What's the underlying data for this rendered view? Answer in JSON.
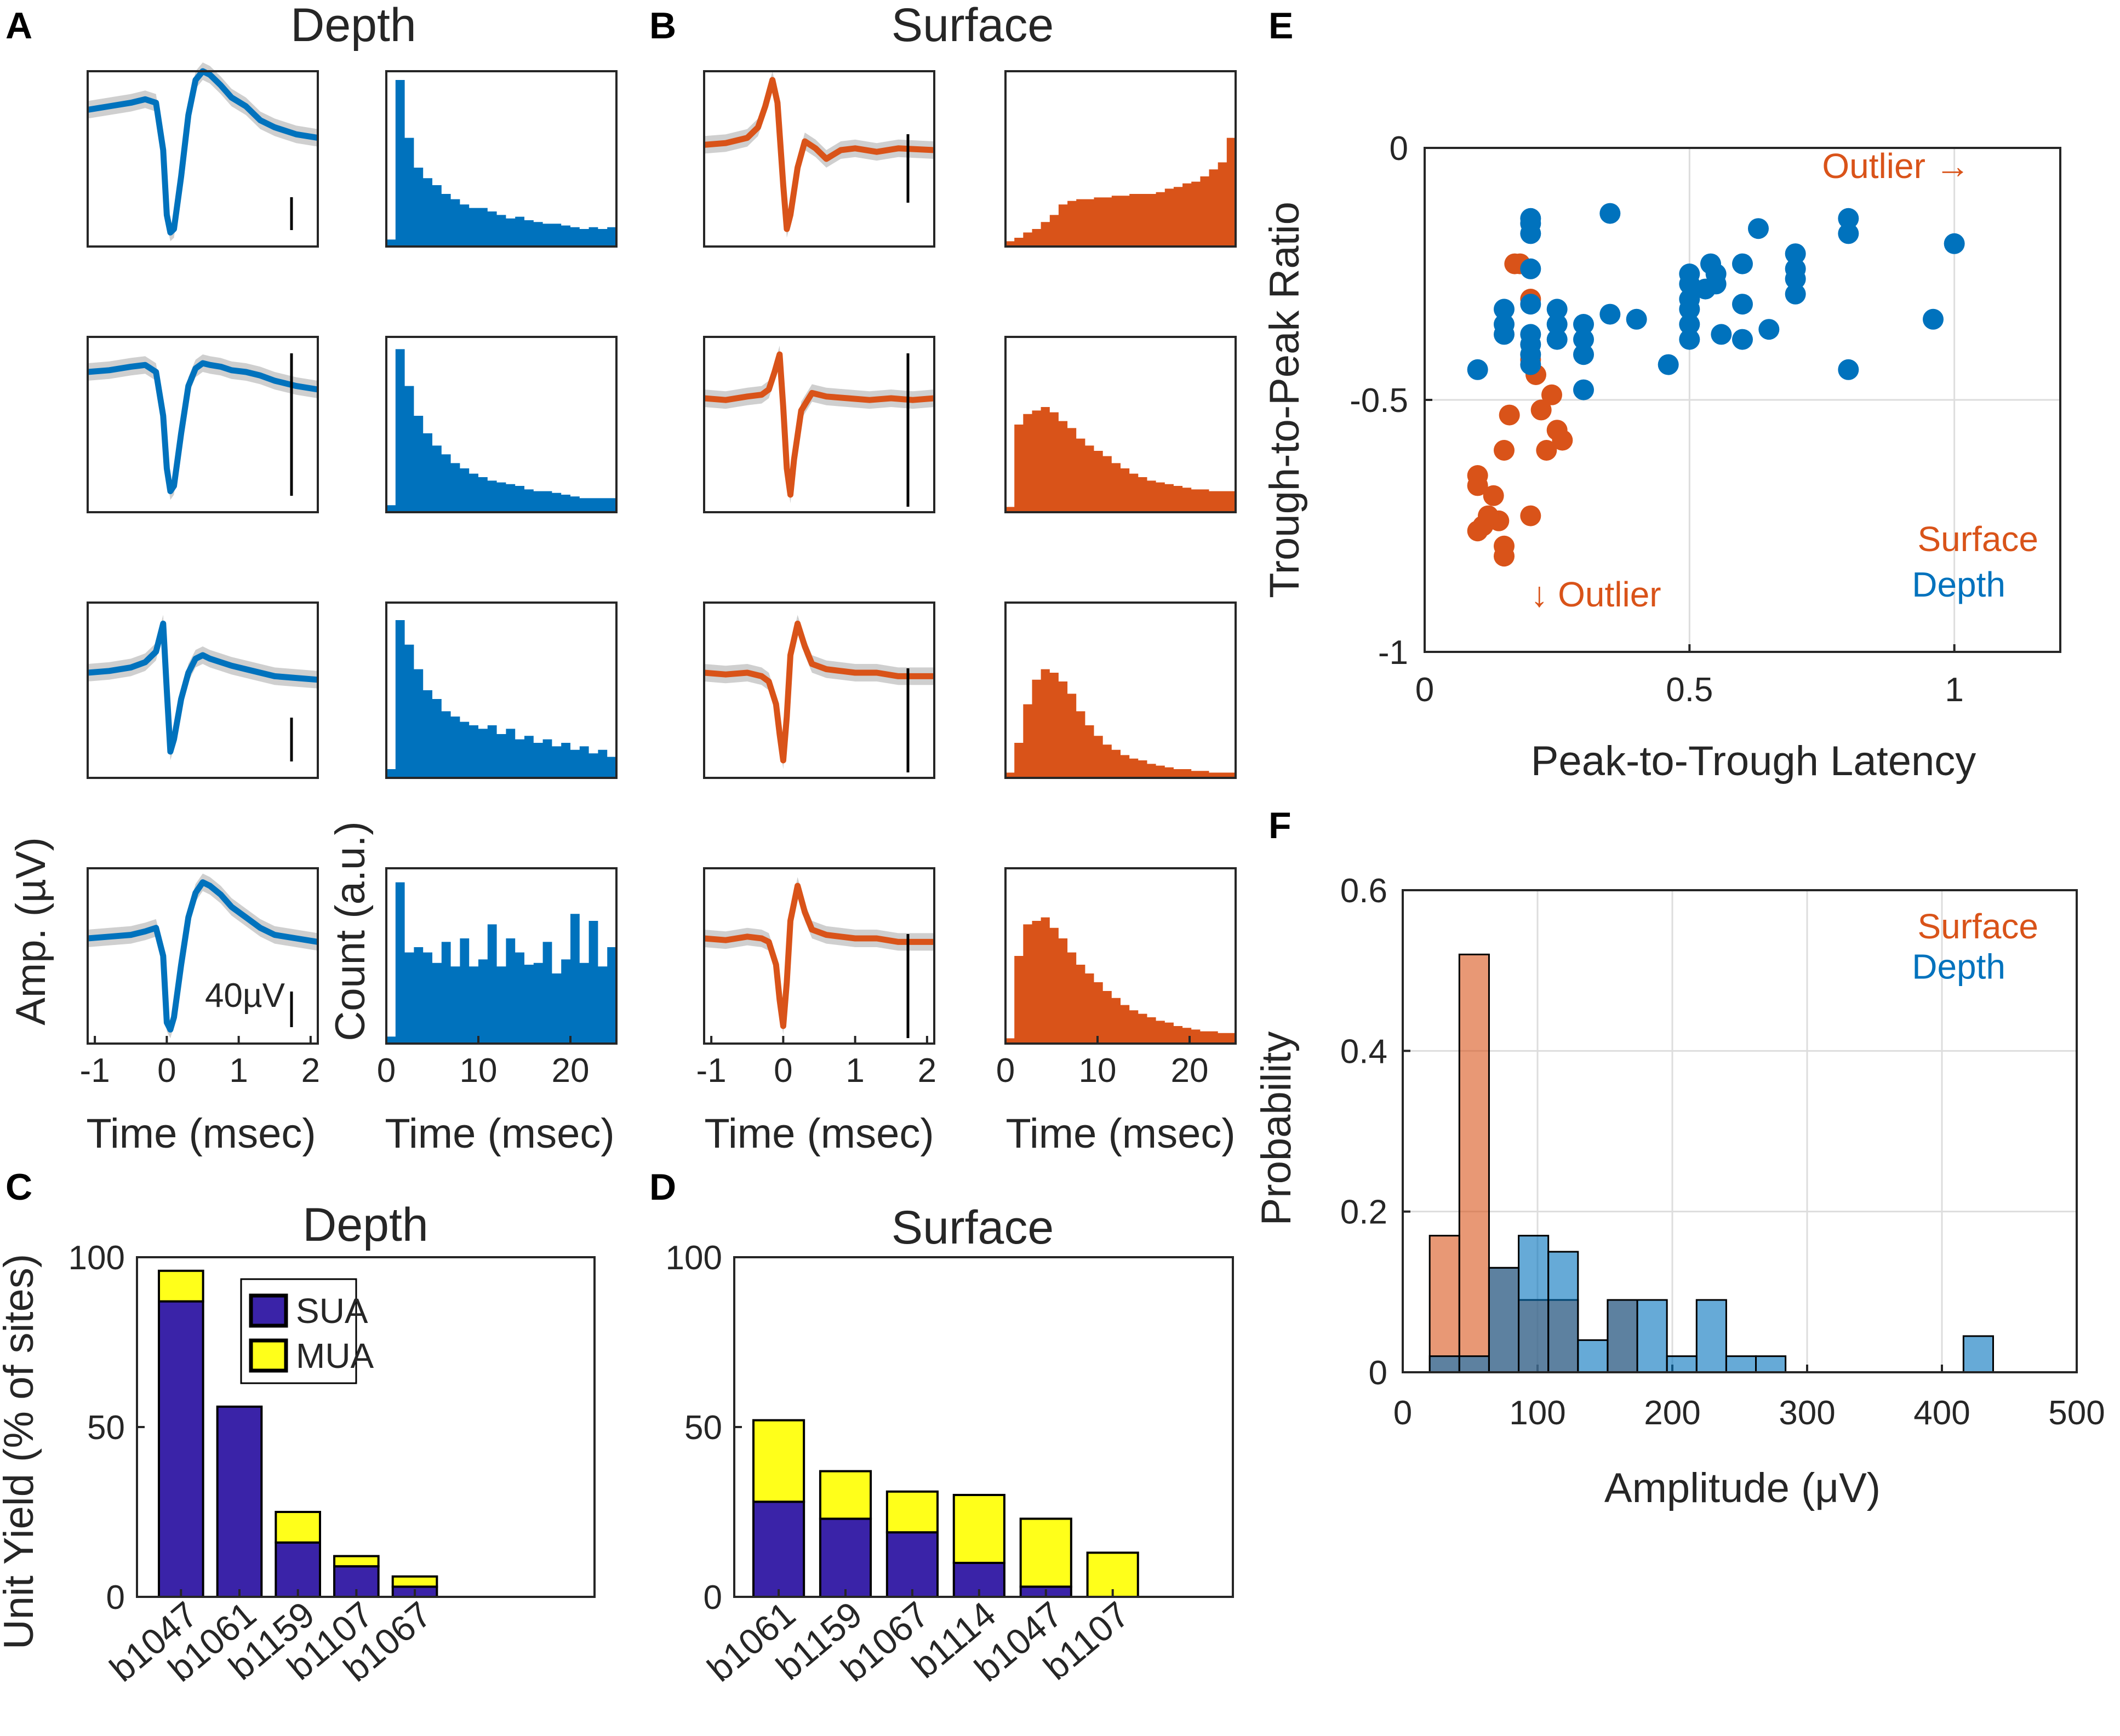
{
  "colors": {
    "depth": "#0072BD",
    "surface": "#D95319",
    "sua": "#3A23A8",
    "mua": "#FFFF1A",
    "shade": "#cfcfcf",
    "grid": "#dddddd",
    "axis": "#262626"
  },
  "chart_data": [
    {
      "id": "A",
      "type": "line",
      "panel_label": "A",
      "title": "Depth",
      "waveform_xlabel": "Time (msec)",
      "waveform_ylabel": "Amp. (µV)",
      "waveform_xticks": [
        "-1",
        "0",
        "1",
        "2"
      ],
      "waveform_xlim": [
        -1.1,
        2.1
      ],
      "hist_xlabel": "Time (msec)",
      "hist_ylabel": "Count (a.u.)",
      "hist_xticks": [
        "0",
        "10",
        "20"
      ],
      "hist_xlim": [
        0,
        25
      ],
      "scale_bar_label": "40µV",
      "rows": [
        {
          "waveform": {
            "t": [
              -1.1,
              -0.8,
              -0.5,
              -0.3,
              -0.15,
              -0.05,
              0,
              0.05,
              0.1,
              0.2,
              0.3,
              0.4,
              0.5,
              0.6,
              0.75,
              0.9,
              1.1,
              1.3,
              1.5,
              1.8,
              2.1
            ],
            "v": [
              0.78,
              0.8,
              0.82,
              0.84,
              0.82,
              0.55,
              0.18,
              0.08,
              0.1,
              0.4,
              0.75,
              0.95,
              1.0,
              0.98,
              0.92,
              0.85,
              0.8,
              0.72,
              0.68,
              0.64,
              0.62
            ]
          },
          "hist": [
            0.04,
            0.95,
            0.62,
            0.45,
            0.39,
            0.35,
            0.3,
            0.27,
            0.24,
            0.22,
            0.22,
            0.2,
            0.18,
            0.16,
            0.17,
            0.15,
            0.14,
            0.13,
            0.13,
            0.12,
            0.11,
            0.1,
            0.11,
            0.1,
            0.11
          ]
        },
        {
          "waveform": {
            "t": [
              -1.1,
              -0.8,
              -0.5,
              -0.3,
              -0.15,
              -0.05,
              0,
              0.05,
              0.1,
              0.2,
              0.3,
              0.4,
              0.5,
              0.6,
              0.75,
              0.9,
              1.1,
              1.3,
              1.5,
              1.8,
              2.1
            ],
            "v": [
              0.8,
              0.81,
              0.83,
              0.84,
              0.8,
              0.55,
              0.25,
              0.12,
              0.15,
              0.45,
              0.72,
              0.82,
              0.85,
              0.84,
              0.83,
              0.81,
              0.8,
              0.78,
              0.75,
              0.72,
              0.7
            ]
          },
          "hist": [
            0.04,
            0.93,
            0.72,
            0.55,
            0.45,
            0.38,
            0.33,
            0.28,
            0.25,
            0.22,
            0.2,
            0.18,
            0.17,
            0.16,
            0.15,
            0.13,
            0.12,
            0.12,
            0.11,
            0.1,
            0.09,
            0.08,
            0.08,
            0.08,
            0.08
          ]
        },
        {
          "waveform": {
            "t": [
              -1.1,
              -0.8,
              -0.5,
              -0.3,
              -0.15,
              -0.05,
              0,
              0.05,
              0.1,
              0.2,
              0.3,
              0.4,
              0.5,
              0.6,
              0.75,
              0.9,
              1.1,
              1.3,
              1.5,
              1.8,
              2.1
            ],
            "v": [
              0.6,
              0.61,
              0.63,
              0.66,
              0.72,
              0.88,
              0.5,
              0.15,
              0.22,
              0.45,
              0.6,
              0.68,
              0.7,
              0.68,
              0.66,
              0.64,
              0.62,
              0.6,
              0.58,
              0.57,
              0.56
            ]
          },
          "hist": [
            0.05,
            0.9,
            0.76,
            0.62,
            0.5,
            0.45,
            0.38,
            0.35,
            0.32,
            0.3,
            0.28,
            0.3,
            0.25,
            0.28,
            0.22,
            0.24,
            0.2,
            0.22,
            0.18,
            0.2,
            0.16,
            0.18,
            0.14,
            0.16,
            0.12
          ]
        },
        {
          "waveform": {
            "t": [
              -1.1,
              -0.8,
              -0.5,
              -0.3,
              -0.15,
              -0.05,
              0,
              0.05,
              0.1,
              0.2,
              0.3,
              0.4,
              0.5,
              0.6,
              0.75,
              0.9,
              1.1,
              1.3,
              1.5,
              1.8,
              2.1
            ],
            "v": [
              0.6,
              0.61,
              0.62,
              0.64,
              0.66,
              0.5,
              0.12,
              0.08,
              0.15,
              0.45,
              0.72,
              0.86,
              0.92,
              0.9,
              0.85,
              0.78,
              0.72,
              0.66,
              0.62,
              0.6,
              0.58
            ]
          },
          "hist": [
            0.04,
            0.92,
            0.52,
            0.55,
            0.52,
            0.46,
            0.58,
            0.44,
            0.6,
            0.44,
            0.48,
            0.68,
            0.44,
            0.6,
            0.52,
            0.45,
            0.46,
            0.58,
            0.4,
            0.48,
            0.74,
            0.46,
            0.7,
            0.44,
            0.55
          ]
        }
      ]
    },
    {
      "id": "B",
      "type": "line",
      "panel_label": "B",
      "title": "Surface",
      "waveform_xlabel": "Time (msec)",
      "waveform_xticks": [
        "-1",
        "0",
        "1",
        "2"
      ],
      "waveform_xlim": [
        -1.1,
        2.1
      ],
      "hist_xlabel": "Time (msec)",
      "hist_xticks": [
        "0",
        "10",
        "20"
      ],
      "hist_xlim": [
        0,
        25
      ],
      "rows": [
        {
          "waveform": {
            "t": [
              -1.1,
              -0.8,
              -0.5,
              -0.35,
              -0.25,
              -0.15,
              -0.08,
              0,
              0.05,
              0.1,
              0.2,
              0.3,
              0.45,
              0.6,
              0.8,
              1.0,
              1.3,
              1.6,
              2.1
            ],
            "v": [
              0.58,
              0.59,
              0.62,
              0.68,
              0.8,
              0.95,
              0.82,
              0.35,
              0.1,
              0.18,
              0.45,
              0.6,
              0.56,
              0.5,
              0.55,
              0.56,
              0.54,
              0.56,
              0.55
            ]
          },
          "hist": [
            0.03,
            0.05,
            0.08,
            0.1,
            0.14,
            0.18,
            0.24,
            0.26,
            0.27,
            0.27,
            0.28,
            0.28,
            0.29,
            0.29,
            0.3,
            0.3,
            0.3,
            0.31,
            0.33,
            0.34,
            0.36,
            0.37,
            0.4,
            0.44,
            0.48,
            0.62
          ]
        },
        {
          "waveform": {
            "t": [
              -1.1,
              -0.8,
              -0.5,
              -0.3,
              -0.2,
              -0.12,
              -0.05,
              0,
              0.05,
              0.1,
              0.15,
              0.25,
              0.4,
              0.6,
              0.9,
              1.2,
              1.5,
              1.8,
              2.1
            ],
            "v": [
              0.65,
              0.64,
              0.66,
              0.67,
              0.7,
              0.8,
              0.9,
              0.6,
              0.25,
              0.1,
              0.3,
              0.58,
              0.68,
              0.66,
              0.65,
              0.64,
              0.65,
              0.64,
              0.65
            ]
          },
          "hist": [
            0.03,
            0.5,
            0.56,
            0.58,
            0.6,
            0.57,
            0.52,
            0.48,
            0.42,
            0.38,
            0.35,
            0.32,
            0.28,
            0.25,
            0.22,
            0.2,
            0.18,
            0.17,
            0.16,
            0.15,
            0.14,
            0.13,
            0.13,
            0.12,
            0.12,
            0.12
          ]
        },
        {
          "waveform": {
            "t": [
              -1.1,
              -0.8,
              -0.5,
              -0.3,
              -0.2,
              -0.1,
              -0.05,
              0,
              0.05,
              0.1,
              0.2,
              0.3,
              0.4,
              0.6,
              0.8,
              1.0,
              1.3,
              1.6,
              2.1
            ],
            "v": [
              0.6,
              0.59,
              0.6,
              0.58,
              0.55,
              0.42,
              0.25,
              0.1,
              0.35,
              0.7,
              0.88,
              0.75,
              0.65,
              0.62,
              0.61,
              0.6,
              0.6,
              0.58,
              0.58
            ]
          },
          "hist": [
            0.03,
            0.2,
            0.42,
            0.56,
            0.62,
            0.6,
            0.55,
            0.48,
            0.38,
            0.3,
            0.24,
            0.19,
            0.16,
            0.13,
            0.11,
            0.1,
            0.08,
            0.07,
            0.06,
            0.05,
            0.05,
            0.04,
            0.04,
            0.03,
            0.03,
            0.03
          ]
        },
        {
          "waveform": {
            "t": [
              -1.1,
              -0.8,
              -0.5,
              -0.3,
              -0.2,
              -0.1,
              -0.05,
              0,
              0.05,
              0.1,
              0.2,
              0.3,
              0.4,
              0.6,
              0.8,
              1.0,
              1.3,
              1.6,
              2.1
            ],
            "v": [
              0.6,
              0.59,
              0.61,
              0.6,
              0.58,
              0.45,
              0.25,
              0.1,
              0.35,
              0.7,
              0.9,
              0.75,
              0.65,
              0.62,
              0.61,
              0.6,
              0.6,
              0.58,
              0.58
            ]
          },
          "hist": [
            0.03,
            0.5,
            0.68,
            0.7,
            0.72,
            0.66,
            0.6,
            0.52,
            0.45,
            0.4,
            0.35,
            0.3,
            0.26,
            0.22,
            0.19,
            0.17,
            0.15,
            0.13,
            0.12,
            0.1,
            0.09,
            0.08,
            0.07,
            0.07,
            0.06,
            0.06
          ]
        }
      ]
    },
    {
      "id": "C",
      "type": "bar",
      "panel_label": "C",
      "title": "Depth",
      "stacked": true,
      "categories": [
        "b1047",
        "b1061",
        "b1159",
        "b1107",
        "b1067"
      ],
      "series": [
        {
          "name": "SUA",
          "values": [
            87,
            56,
            16,
            9,
            3
          ]
        },
        {
          "name": "MUA",
          "values": [
            9,
            0,
            9,
            3,
            3
          ]
        }
      ],
      "ylabel": "Unit Yield (% of sites)",
      "ylim": [
        0,
        100
      ],
      "yticks": [
        "0",
        "50",
        "100"
      ],
      "legend": [
        {
          "name": "SUA"
        },
        {
          "name": "MUA"
        }
      ],
      "legend_position": "top-right"
    },
    {
      "id": "D",
      "type": "bar",
      "panel_label": "D",
      "title": "Surface",
      "stacked": true,
      "categories": [
        "b1061",
        "b1159",
        "b1067",
        "b1114",
        "b1047",
        "b1107"
      ],
      "series": [
        {
          "name": "SUA",
          "values": [
            28,
            23,
            19,
            10,
            3,
            0
          ]
        },
        {
          "name": "MUA",
          "values": [
            24,
            14,
            12,
            20,
            20,
            13
          ]
        }
      ],
      "ylim": [
        0,
        100
      ],
      "yticks": [
        "0",
        "50",
        "100"
      ]
    },
    {
      "id": "E",
      "type": "scatter",
      "panel_label": "E",
      "xlabel": "Peak-to-Trough Latency",
      "ylabel": "Trough-to-Peak Ratio",
      "xlim": [
        0,
        1.2
      ],
      "ylim": [
        -1,
        0
      ],
      "xticks": [
        {
          "v": 0,
          "label": "0"
        },
        {
          "v": 0.5,
          "label": "0.5"
        },
        {
          "v": 1,
          "label": "1"
        }
      ],
      "yticks": [
        {
          "v": 0,
          "label": "0"
        },
        {
          "v": -0.5,
          "label": "-0.5"
        },
        {
          "v": -1,
          "label": "-1"
        }
      ],
      "grid": true,
      "series": [
        {
          "name": "Surface",
          "x": [
            0.1,
            0.1,
            0.11,
            0.1,
            0.13,
            0.14,
            0.15,
            0.15,
            0.12,
            0.16,
            0.15,
            0.18,
            0.2,
            0.2,
            0.21,
            0.24,
            0.25,
            0.26,
            0.23,
            0.22,
            0.17,
            0.2
          ],
          "y": [
            -0.65,
            -0.67,
            -0.75,
            -0.76,
            -0.69,
            -0.74,
            -0.79,
            -0.81,
            -0.73,
            -0.53,
            -0.6,
            -0.23,
            -0.3,
            -0.42,
            -0.45,
            -0.49,
            -0.56,
            -0.58,
            -0.6,
            -0.52,
            -0.23,
            -0.73
          ]
        },
        {
          "name": "Depth",
          "x": [
            0.1,
            0.2,
            0.2,
            0.2,
            0.2,
            0.2,
            0.2,
            0.2,
            0.2,
            0.2,
            0.15,
            0.15,
            0.15,
            0.25,
            0.25,
            0.25,
            0.3,
            0.3,
            0.3,
            0.35,
            0.35,
            0.4,
            0.46,
            0.5,
            0.5,
            0.5,
            0.5,
            0.5,
            0.5,
            0.53,
            0.54,
            0.55,
            0.55,
            0.56,
            0.6,
            0.6,
            0.6,
            0.63,
            0.65,
            0.7,
            0.7,
            0.7,
            0.7,
            0.8,
            0.8,
            0.8,
            0.96,
            1.0,
            0.3
          ],
          "y": [
            -0.44,
            -0.14,
            -0.15,
            -0.17,
            -0.24,
            -0.31,
            -0.37,
            -0.39,
            -0.41,
            -0.43,
            -0.32,
            -0.35,
            -0.37,
            -0.32,
            -0.35,
            -0.38,
            -0.35,
            -0.41,
            -0.48,
            -0.13,
            -0.33,
            -0.34,
            -0.43,
            -0.25,
            -0.27,
            -0.3,
            -0.32,
            -0.35,
            -0.38,
            -0.28,
            -0.23,
            -0.25,
            -0.27,
            -0.37,
            -0.23,
            -0.31,
            -0.38,
            -0.16,
            -0.36,
            -0.21,
            -0.24,
            -0.26,
            -0.29,
            -0.14,
            -0.17,
            -0.44,
            -0.34,
            -0.19,
            -0.38
          ]
        }
      ],
      "annotations": [
        {
          "text": "Outlier →",
          "series": "Surface"
        },
        {
          "text": "↓ Outlier",
          "series": "Surface"
        }
      ],
      "legend": [
        {
          "name": "Surface"
        },
        {
          "name": "Depth"
        }
      ],
      "legend_position": "bottom-right"
    },
    {
      "id": "F",
      "type": "bar",
      "panel_label": "F",
      "histogram": true,
      "xlabel": "Amplitude (μV)",
      "ylabel": "Probability",
      "xlim": [
        0,
        500
      ],
      "ylim": [
        0,
        0.6
      ],
      "xticks": [
        "0",
        "100",
        "200",
        "300",
        "400",
        "500"
      ],
      "yticks": [
        "0",
        "0.2",
        "0.4",
        "0.6"
      ],
      "bin_edges": [
        20,
        42,
        64,
        86,
        108,
        130,
        152,
        174,
        196,
        218,
        240,
        262,
        284,
        306,
        328,
        350,
        372,
        394,
        416,
        438
      ],
      "grid": true,
      "series": [
        {
          "name": "Surface",
          "values": [
            0.17,
            0.52,
            0.13,
            0.09,
            0.09,
            0,
            0.09,
            0,
            0,
            0,
            0,
            0,
            0,
            0,
            0,
            0,
            0,
            0,
            0
          ]
        },
        {
          "name": "Depth",
          "values": [
            0.02,
            0.02,
            0.13,
            0.17,
            0.15,
            0.04,
            0.09,
            0.09,
            0.02,
            0.09,
            0.02,
            0.02,
            0,
            0,
            0,
            0,
            0,
            0,
            0.045
          ]
        }
      ],
      "legend": [
        {
          "name": "Surface"
        },
        {
          "name": "Depth"
        }
      ],
      "legend_position": "top-right"
    }
  ]
}
